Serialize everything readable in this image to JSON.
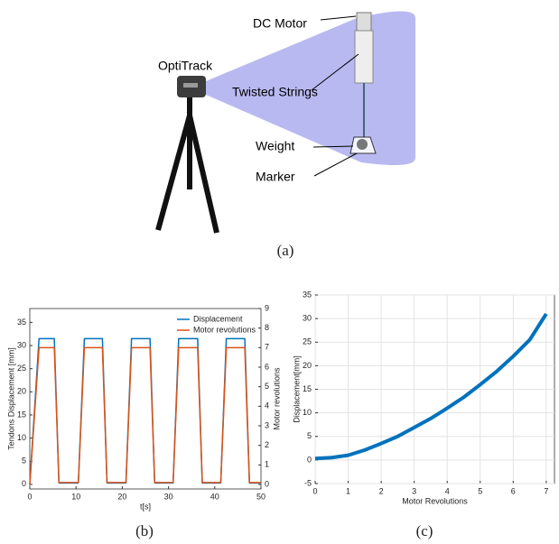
{
  "diagram": {
    "labels": [
      "DC Motor",
      "OptiTrack",
      "Twisted Strings",
      "Weight",
      "Marker"
    ],
    "caption": "(a)"
  },
  "chart_data": [
    {
      "type": "line",
      "caption": "(b)",
      "xlabel": "t[s]",
      "ylabel": "Tendons Displacement [mm]",
      "y2label": "Motor revolutions",
      "x": [
        0,
        2,
        5.3,
        6.3,
        10.5,
        11.8,
        15.7,
        16.7,
        20.8,
        22,
        26,
        27,
        31,
        32.2,
        36.3,
        37.3,
        41.3,
        42.5,
        46.5,
        47.5,
        50
      ],
      "xlim": [
        0,
        50
      ],
      "xticks": [
        0,
        10,
        20,
        30,
        40,
        50
      ],
      "ylim": [
        -1,
        38
      ],
      "yticks": [
        0,
        5,
        10,
        15,
        20,
        25,
        30,
        35
      ],
      "y2lim": [
        -0.23,
        9
      ],
      "y2ticks": [
        0,
        1,
        2,
        3,
        4,
        5,
        6,
        7,
        8,
        9
      ],
      "legend": "upper right",
      "series": [
        {
          "name": "Displacement",
          "color": "#0072bd",
          "values": [
            0,
            31.5,
            31.5,
            0.3,
            0.3,
            31.5,
            31.5,
            0.3,
            0.3,
            31.5,
            31.5,
            0.3,
            0.3,
            31.5,
            31.5,
            0.3,
            0.3,
            31.5,
            31.5,
            0.3,
            0.3
          ]
        },
        {
          "name": "Motor revolutions",
          "color": "#d95319",
          "axis": "y2",
          "values": [
            0,
            7,
            7,
            0.1,
            0.1,
            7,
            7,
            0.1,
            0.1,
            7,
            7,
            0.1,
            0.1,
            7,
            7,
            0.1,
            0.1,
            7,
            7,
            0.1,
            0.1
          ]
        }
      ]
    },
    {
      "type": "line",
      "caption": "(c)",
      "xlabel": "Motor Revolutions",
      "ylabel": "Displacement[mm]",
      "x": [
        0,
        0.5,
        1,
        1.5,
        2,
        2.5,
        3,
        3.5,
        4,
        4.5,
        5,
        5.5,
        6,
        6.5,
        7
      ],
      "xlim": [
        0,
        7.25
      ],
      "xticks": [
        0,
        1,
        2,
        3,
        4,
        5,
        6,
        7
      ],
      "ylim": [
        -5,
        35
      ],
      "yticks": [
        -5,
        0,
        5,
        10,
        15,
        20,
        25,
        30,
        35
      ],
      "grid": true,
      "series": [
        {
          "color": "#0072bd",
          "values": [
            0.3,
            0.5,
            1.0,
            2.1,
            3.5,
            5.0,
            6.9,
            8.8,
            11.0,
            13.3,
            16.0,
            18.8,
            22.0,
            25.5,
            31
          ]
        }
      ]
    }
  ]
}
